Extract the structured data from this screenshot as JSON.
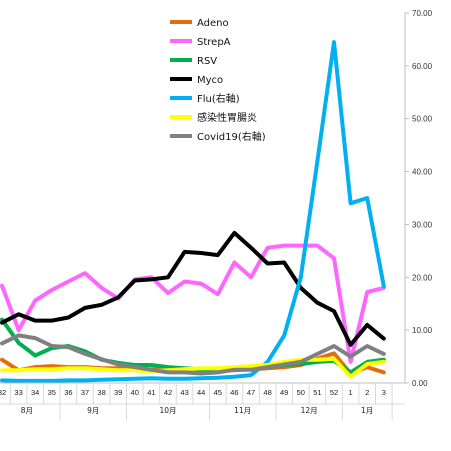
{
  "chart_data": {
    "type": "line",
    "x": [
      "32",
      "33",
      "34",
      "35",
      "36",
      "37",
      "38",
      "39",
      "40",
      "41",
      "42",
      "43",
      "44",
      "45",
      "46",
      "47",
      "48",
      "49",
      "50",
      "51",
      "52",
      "1",
      "2",
      "3"
    ],
    "months": [
      {
        "label": "8月",
        "from": "32",
        "to": "35"
      },
      {
        "label": "9月",
        "from": "36",
        "to": "39"
      },
      {
        "label": "10月",
        "from": "40",
        "to": "44"
      },
      {
        "label": "11月",
        "from": "45",
        "to": "48"
      },
      {
        "label": "12月",
        "from": "49",
        "to": "52"
      },
      {
        "label": "1月",
        "from": "1",
        "to": "3"
      }
    ],
    "y_right": {
      "ticks": [
        "0.00",
        "10.00",
        "20.00",
        "30.00",
        "40.00",
        "50.00",
        "60.00",
        "70.00"
      ],
      "ylim": [
        0,
        70
      ]
    },
    "left_axis_max": 35,
    "series": [
      {
        "name": "Adeno",
        "color": "#E46C0A",
        "axis": "left",
        "values": [
          2.2,
          1.2,
          1.5,
          1.6,
          1.5,
          1.5,
          1.4,
          1.4,
          1.3,
          1.3,
          1.2,
          1.2,
          1.2,
          1.3,
          1.2,
          1.3,
          1.4,
          1.5,
          1.7,
          2.3,
          2.8,
          0.9,
          1.5,
          1.0
        ]
      },
      {
        "name": "StrepA",
        "color": "#FF66FF",
        "axis": "left",
        "values": [
          9.2,
          5.0,
          7.8,
          8.8,
          9.6,
          10.4,
          9.0,
          8.0,
          9.8,
          10.0,
          8.5,
          9.6,
          9.4,
          8.4,
          11.4,
          10.0,
          12.8,
          13.0,
          13.0,
          13.0,
          11.8,
          2.0,
          8.6,
          9.0
        ]
      },
      {
        "name": "RSV",
        "color": "#00B050",
        "axis": "left",
        "values": [
          6.0,
          3.8,
          2.6,
          3.3,
          3.5,
          3.0,
          2.2,
          1.9,
          1.7,
          1.7,
          1.5,
          1.4,
          1.3,
          1.2,
          1.3,
          1.3,
          1.5,
          1.7,
          1.8,
          2.0,
          2.1,
          1.0,
          2.0,
          2.2
        ]
      },
      {
        "name": "Myco",
        "color": "#000000",
        "axis": "left",
        "values": [
          5.7,
          6.5,
          5.9,
          5.9,
          6.2,
          7.1,
          7.4,
          8.1,
          9.7,
          9.8,
          10.0,
          12.4,
          12.3,
          12.1,
          14.2,
          12.8,
          11.3,
          11.4,
          9.0,
          7.6,
          6.8,
          3.6,
          5.5,
          4.2
        ]
      },
      {
        "name": "Flu(右軸)",
        "color": "#00B0F0",
        "axis": "right",
        "values": [
          0.5,
          0.4,
          0.4,
          0.4,
          0.5,
          0.5,
          0.6,
          0.7,
          0.8,
          0.9,
          0.8,
          0.8,
          0.9,
          1.0,
          1.2,
          1.5,
          4.0,
          9.0,
          20.0,
          42.0,
          64.5,
          34.0,
          35.0,
          18.3
        ]
      },
      {
        "name": "感染性胃腸炎",
        "color": "#FFFF00",
        "axis": "left",
        "values": [
          1.2,
          1.2,
          1.3,
          1.3,
          1.4,
          1.4,
          1.3,
          1.2,
          1.2,
          1.1,
          1.2,
          1.3,
          1.4,
          1.4,
          1.5,
          1.6,
          1.7,
          2.0,
          2.2,
          2.2,
          2.3,
          0.6,
          1.8,
          2.0
        ]
      },
      {
        "name": "Covid19(右軸)",
        "color": "#808080",
        "axis": "right",
        "values": [
          7.5,
          9.0,
          8.5,
          7.0,
          6.8,
          5.5,
          4.5,
          3.5,
          3.0,
          2.5,
          2.0,
          2.0,
          1.8,
          2.0,
          2.5,
          2.5,
          3.0,
          3.5,
          4.0,
          5.5,
          7.0,
          5.0,
          7.0,
          5.5
        ]
      }
    ]
  }
}
